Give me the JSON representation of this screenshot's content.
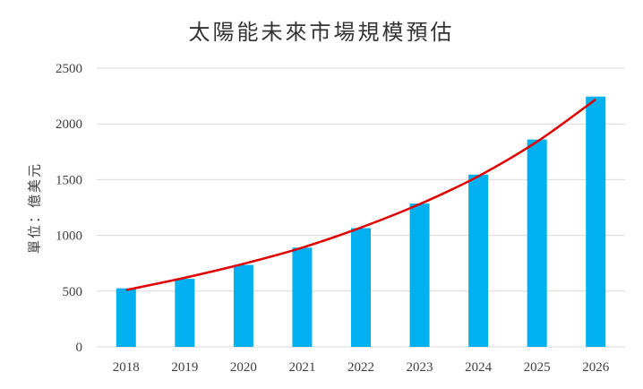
{
  "chart_data": {
    "type": "bar",
    "title": "太陽能未來市場規模預估",
    "xlabel": "",
    "ylabel": "單位：億美元",
    "categories": [
      "2018",
      "2019",
      "2020",
      "2021",
      "2022",
      "2023",
      "2024",
      "2025",
      "2026"
    ],
    "series": [
      {
        "values": [
          525,
          610,
          735,
          890,
          1065,
          1285,
          1545,
          1860,
          2245
        ]
      }
    ],
    "trendline": {
      "type": "exponential",
      "values": [
        510,
        620,
        745,
        890,
        1070,
        1280,
        1530,
        1840,
        2220
      ]
    },
    "ylim": [
      0,
      2500
    ],
    "yticks": [
      0,
      500,
      1000,
      1500,
      2000,
      2500
    ],
    "grid": true,
    "legend": "none",
    "colors": {
      "bar": "#00b0f0",
      "trend": "#e00000",
      "grid": "#d9d9d9",
      "axis_text": "#404040"
    }
  }
}
